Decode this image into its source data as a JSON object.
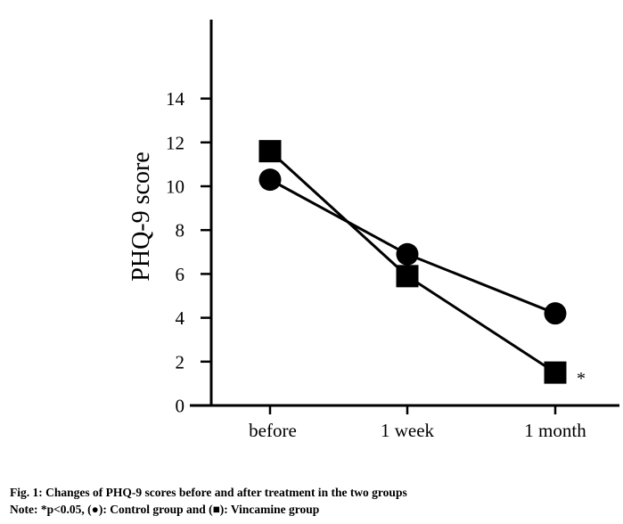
{
  "chart_data": {
    "type": "line",
    "title": "",
    "xlabel": "",
    "ylabel": "PHQ-9 score",
    "categories": [
      "before",
      "1 week",
      "1 month"
    ],
    "ylim": [
      0,
      14
    ],
    "yticks": [
      0,
      2,
      4,
      6,
      8,
      10,
      12,
      14
    ],
    "grid": false,
    "series": [
      {
        "name": "Control group",
        "marker": "circle",
        "values": [
          10.3,
          6.9,
          4.2
        ]
      },
      {
        "name": "Vincamine group",
        "marker": "square",
        "values": [
          11.6,
          5.9,
          1.5
        ]
      }
    ],
    "annotations": [
      {
        "category": "1 month",
        "series": "Vincamine group",
        "text": "*"
      }
    ],
    "color": "#000000"
  },
  "caption": {
    "line1": "Fig. 1: Changes of PHQ-9 scores before and after treatment in the two groups",
    "line2": "Note: *p<0.05, (●): Control group and (■): Vincamine group"
  }
}
